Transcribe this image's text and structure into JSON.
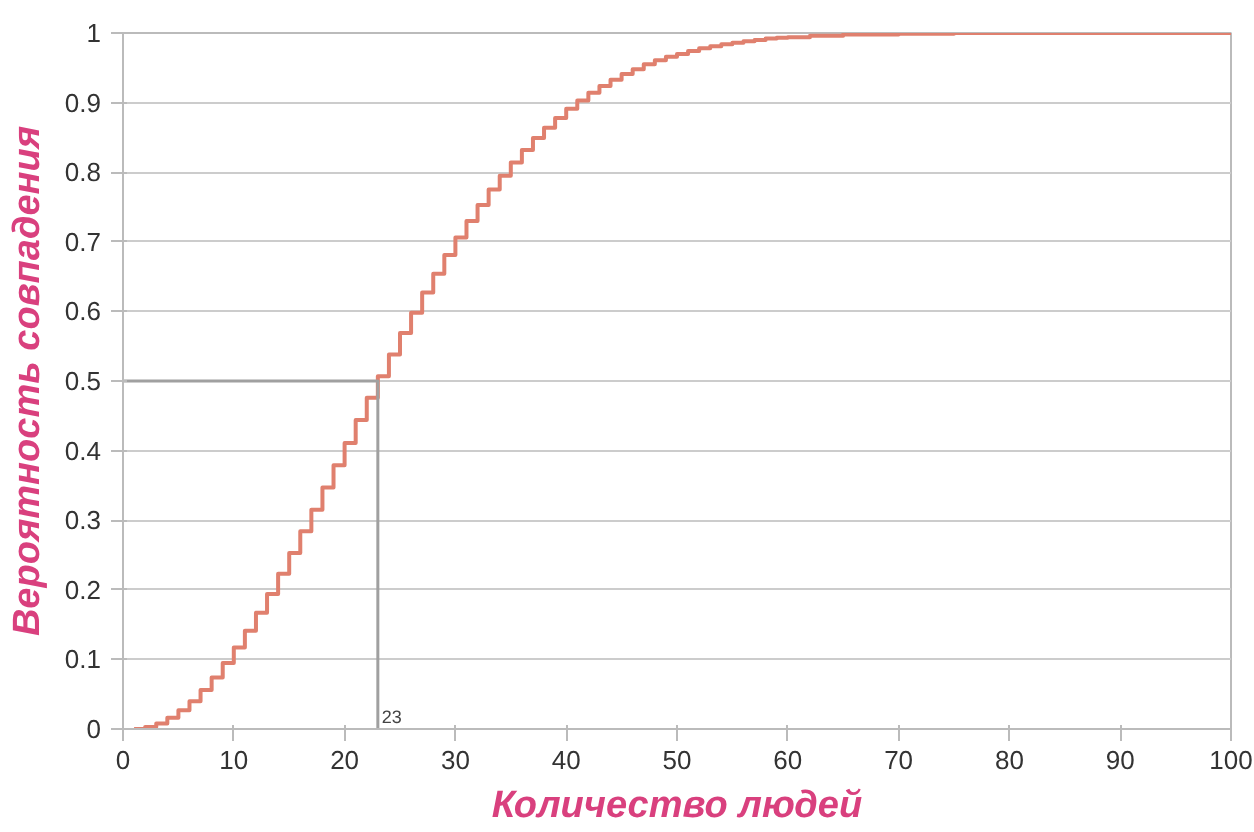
{
  "chart_data": {
    "type": "step",
    "xlabel": "Количество людей",
    "ylabel": "Вероятность совпадения",
    "series": [
      {
        "color": "#e0806e",
        "x": [
          1,
          2,
          3,
          4,
          5,
          6,
          7,
          8,
          9,
          10,
          11,
          12,
          13,
          14,
          15,
          16,
          17,
          18,
          19,
          20,
          21,
          22,
          23,
          24,
          25,
          26,
          27,
          28,
          29,
          30,
          31,
          32,
          33,
          34,
          35,
          36,
          37,
          38,
          39,
          40,
          41,
          42,
          43,
          44,
          45,
          46,
          47,
          48,
          49,
          50,
          51,
          52,
          53,
          54,
          55,
          56,
          57,
          58,
          59,
          60,
          62,
          65,
          70,
          75,
          100
        ],
        "values": [
          0,
          0.003,
          0.008,
          0.016,
          0.027,
          0.04,
          0.056,
          0.074,
          0.095,
          0.117,
          0.141,
          0.167,
          0.194,
          0.223,
          0.253,
          0.284,
          0.315,
          0.347,
          0.379,
          0.411,
          0.444,
          0.476,
          0.507,
          0.538,
          0.569,
          0.598,
          0.627,
          0.654,
          0.681,
          0.706,
          0.73,
          0.753,
          0.775,
          0.795,
          0.814,
          0.832,
          0.849,
          0.864,
          0.878,
          0.891,
          0.903,
          0.914,
          0.924,
          0.933,
          0.941,
          0.948,
          0.955,
          0.961,
          0.966,
          0.97,
          0.974,
          0.978,
          0.981,
          0.984,
          0.986,
          0.988,
          0.99,
          0.992,
          0.993,
          0.994,
          0.996,
          0.998,
          0.999,
          1,
          1
        ]
      },
      {
        "type": "line",
        "color": "#a0a0a0",
        "x": [
          0,
          23,
          23
        ],
        "values": [
          0.5,
          0.5,
          0
        ]
      }
    ],
    "annotations": [
      {
        "text": "23",
        "x": 23,
        "y": 0
      }
    ],
    "xlim": [
      0,
      100
    ],
    "ylim": [
      0,
      1
    ],
    "xticks": [
      0,
      10,
      20,
      30,
      40,
      50,
      60,
      70,
      80,
      90,
      100
    ],
    "yticks": [
      0,
      0.1,
      0.2,
      0.3,
      0.4,
      0.5,
      0.6,
      0.7,
      0.8,
      0.9,
      1
    ],
    "grid": "y"
  }
}
